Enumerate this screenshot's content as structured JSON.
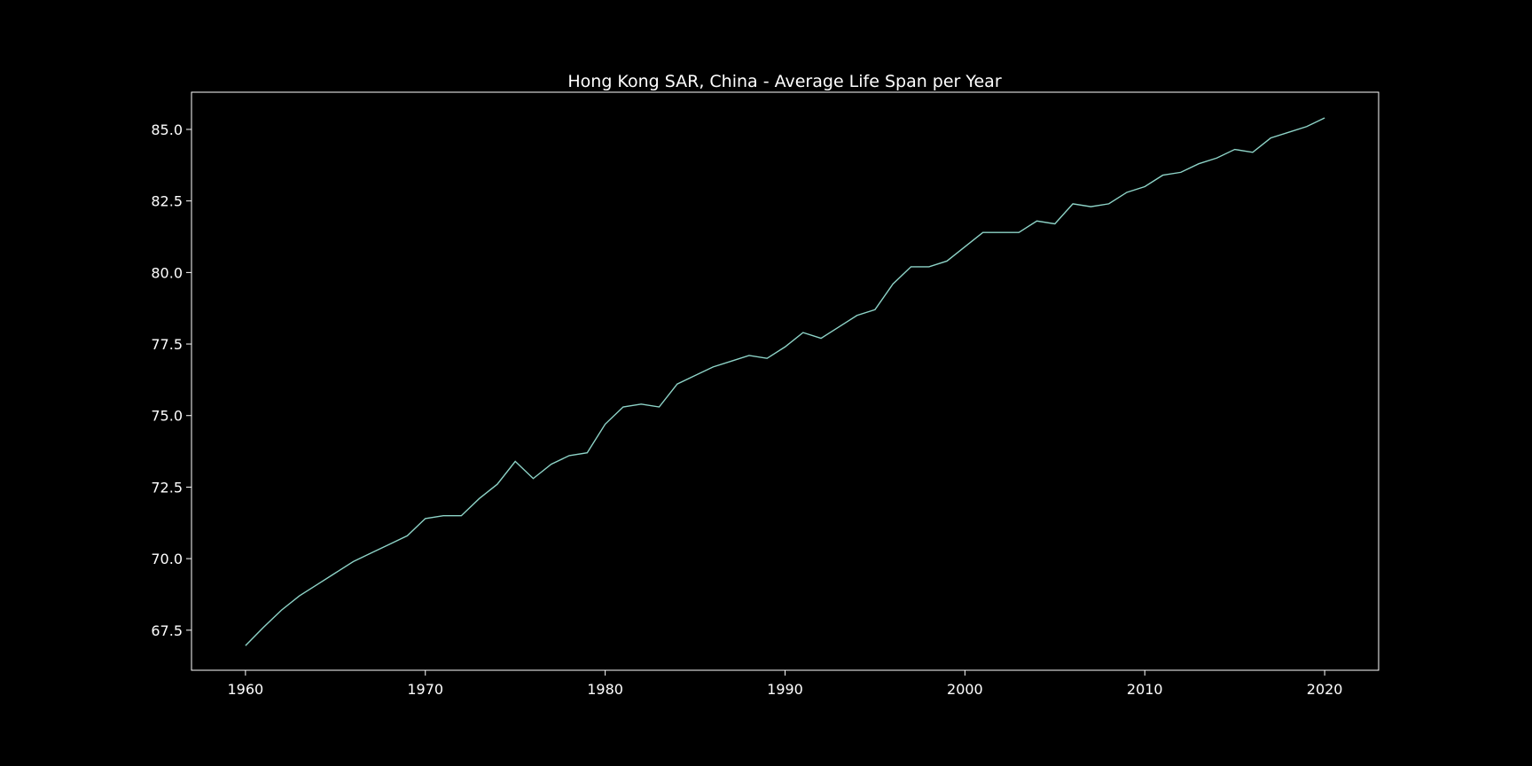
{
  "chart_data": {
    "type": "line",
    "title": "Hong Kong SAR, China - Average Life Span per Year",
    "xlabel": "",
    "ylabel": "",
    "xlim": [
      1957,
      2023
    ],
    "ylim": [
      66.1,
      86.3
    ],
    "xticks": [
      1960,
      1970,
      1980,
      1990,
      2000,
      2010,
      2020
    ],
    "xtick_labels": [
      "1960",
      "1970",
      "1980",
      "1990",
      "2000",
      "2010",
      "2020"
    ],
    "yticks": [
      67.5,
      70.0,
      72.5,
      75.0,
      77.5,
      80.0,
      82.5,
      85.0
    ],
    "ytick_labels": [
      "67.5",
      "70.0",
      "72.5",
      "75.0",
      "77.5",
      "80.0",
      "82.5",
      "85.0"
    ],
    "grid": false,
    "legend": "none",
    "line_color": "#8dd3c7",
    "background": "#000000",
    "series": [
      {
        "x": [
          1960,
          1961,
          1962,
          1963,
          1964,
          1965,
          1966,
          1967,
          1968,
          1969,
          1970,
          1971,
          1972,
          1973,
          1974,
          1975,
          1976,
          1977,
          1978,
          1979,
          1980,
          1981,
          1982,
          1983,
          1984,
          1985,
          1986,
          1987,
          1988,
          1989,
          1990,
          1991,
          1992,
          1993,
          1994,
          1995,
          1996,
          1997,
          1998,
          1999,
          2000,
          2001,
          2002,
          2003,
          2004,
          2005,
          2006,
          2007,
          2008,
          2009,
          2010,
          2011,
          2012,
          2013,
          2014,
          2015,
          2016,
          2017,
          2018,
          2019,
          2020
        ],
        "values": [
          66.96,
          67.6,
          68.2,
          68.7,
          69.1,
          69.5,
          69.9,
          70.2,
          70.5,
          70.8,
          71.4,
          71.5,
          71.5,
          72.1,
          72.6,
          73.4,
          72.8,
          73.3,
          73.6,
          73.7,
          74.7,
          75.3,
          75.4,
          75.3,
          76.1,
          76.4,
          76.7,
          76.9,
          77.1,
          77.0,
          77.4,
          77.9,
          77.7,
          78.1,
          78.5,
          78.7,
          79.6,
          80.2,
          80.2,
          80.4,
          80.9,
          81.4,
          81.4,
          81.4,
          81.8,
          81.7,
          82.4,
          82.3,
          82.4,
          82.8,
          83.0,
          83.4,
          83.5,
          83.8,
          84.0,
          84.3,
          84.2,
          84.7,
          84.9,
          85.1,
          85.4
        ]
      }
    ]
  }
}
